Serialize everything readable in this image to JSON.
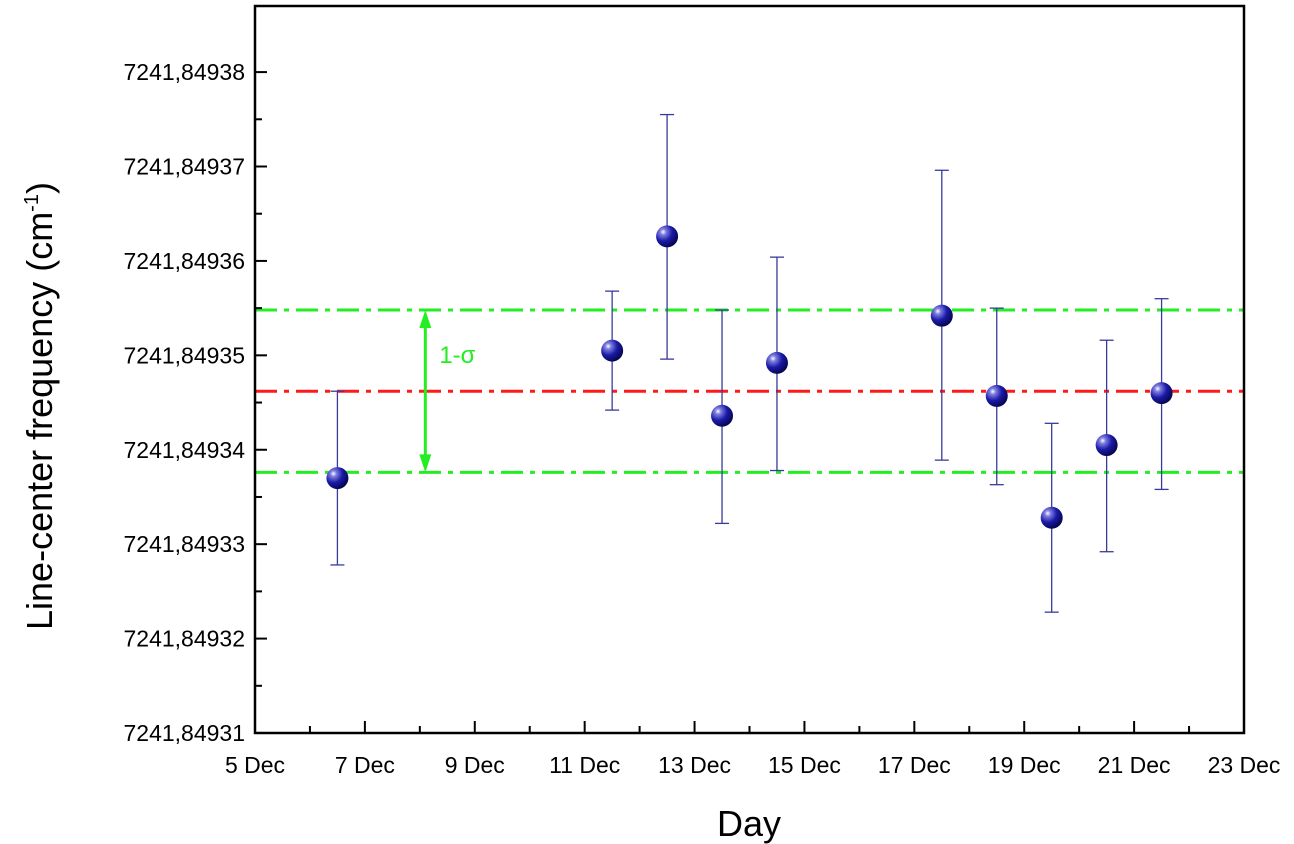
{
  "chart_data": {
    "type": "scatter",
    "xlabel": "Day",
    "ylabel": "Line-center frequency (cm",
    "ylabel_superscript": "-1",
    "x_ticks": [
      "5 Dec",
      "7 Dec",
      "9 Dec",
      "11 Dec",
      "13 Dec",
      "15 Dec",
      "17 Dec",
      "19 Dec",
      "21 Dec",
      "23 Dec"
    ],
    "xlim": [
      "5 Dec",
      "23 Dec"
    ],
    "y_ticks": [
      "7241,84931",
      "7241,84932",
      "7241,84933",
      "7241,84934",
      "7241,84935",
      "7241,84936",
      "7241,84937",
      "7241,84938"
    ],
    "ylim": [
      7241.84931,
      7241.849387
    ],
    "y_tick_values": [
      7241.84931,
      7241.84932,
      7241.84933,
      7241.84934,
      7241.84935,
      7241.84936,
      7241.84937,
      7241.84938
    ],
    "x_tick_values": [
      5,
      7,
      9,
      11,
      13,
      15,
      17,
      19,
      21,
      23
    ],
    "x_range": [
      5,
      23
    ],
    "grid": false,
    "points": [
      {
        "x": 6.5,
        "y": 7241.849337,
        "err_low": 7241.8493278,
        "err_high": 7241.8493462
      },
      {
        "x": 11.5,
        "y": 7241.8493505,
        "err_low": 7241.8493442,
        "err_high": 7241.8493568
      },
      {
        "x": 12.5,
        "y": 7241.8493626,
        "err_low": 7241.8493496,
        "err_high": 7241.8493755
      },
      {
        "x": 13.5,
        "y": 7241.8493436,
        "err_low": 7241.8493322,
        "err_high": 7241.8493548
      },
      {
        "x": 14.5,
        "y": 7241.8493492,
        "err_low": 7241.8493378,
        "err_high": 7241.8493604
      },
      {
        "x": 17.5,
        "y": 7241.8493542,
        "err_low": 7241.8493389,
        "err_high": 7241.8493696
      },
      {
        "x": 18.5,
        "y": 7241.8493457,
        "err_low": 7241.8493363,
        "err_high": 7241.849355
      },
      {
        "x": 19.5,
        "y": 7241.8493328,
        "err_low": 7241.8493228,
        "err_high": 7241.8493428
      },
      {
        "x": 20.5,
        "y": 7241.8493405,
        "err_low": 7241.8493292,
        "err_high": 7241.8493516
      },
      {
        "x": 21.5,
        "y": 7241.849346,
        "err_low": 7241.8493358,
        "err_high": 7241.849356
      }
    ],
    "mean_line": {
      "y": 7241.8493462,
      "color": "#ff1a1a",
      "style": "dash-dot"
    },
    "sigma_lines": {
      "upper": 7241.8493548,
      "lower": 7241.8493376,
      "color": "#22ee22",
      "style": "dash-dot"
    },
    "annotation": {
      "text": "1-σ",
      "x": 8.1,
      "color": "#22ee22"
    },
    "colors": {
      "marker": "#1a1aa8",
      "marker_highlight": "#ffffff",
      "errorbar": "#3a3a9a",
      "axis": "#000000"
    }
  }
}
